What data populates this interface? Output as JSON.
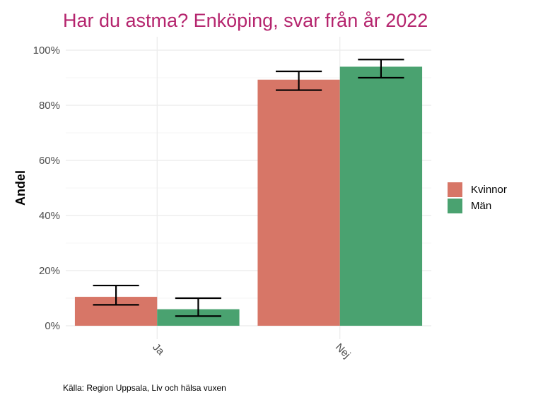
{
  "chart_data": {
    "type": "bar",
    "title": "Har du astma? Enköping, svar från år 2022",
    "ylabel": "Andel",
    "xlabel": "",
    "categories": [
      "Ja",
      "Nej"
    ],
    "series": [
      {
        "name": "Kvinnor",
        "values": [
          10.5,
          89.3
        ],
        "error_low": [
          7.6,
          85.5
        ],
        "error_high": [
          14.6,
          92.3
        ],
        "color": "#d77667"
      },
      {
        "name": "Män",
        "values": [
          6.0,
          94.0
        ],
        "error_low": [
          3.5,
          90.0
        ],
        "error_high": [
          10.0,
          96.6
        ],
        "color": "#4aa270"
      }
    ],
    "ylim": [
      0,
      100
    ],
    "yticks": [
      0,
      20,
      40,
      60,
      80,
      100
    ],
    "ytick_labels": [
      "0%",
      "20%",
      "40%",
      "60%",
      "80%",
      "100%"
    ],
    "grid": true,
    "legend_position": "right",
    "caption": "Källa: Region Uppsala, Liv och hälsa vuxen"
  },
  "colors": {
    "title": "#b5256e",
    "grid_major": "#ebebeb",
    "grid_minor": "#f5f5f5"
  }
}
